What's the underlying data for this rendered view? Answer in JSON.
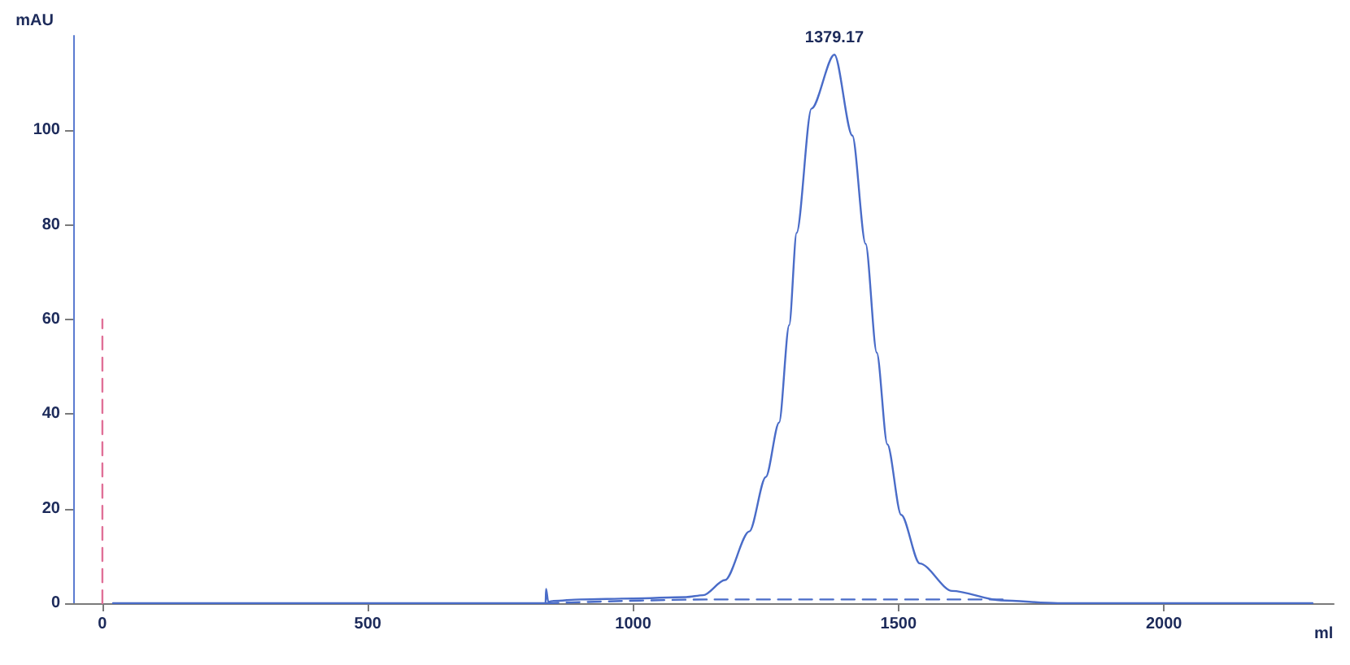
{
  "chart_data": {
    "type": "line",
    "xlabel": "ml",
    "ylabel": "mAU",
    "xlim": [
      -55,
      2320
    ],
    "xticks": [
      0,
      500,
      1000,
      1500,
      2000
    ],
    "ylim": [
      0,
      120
    ],
    "yticks": [
      0,
      20,
      40,
      60,
      80,
      100
    ],
    "grid": false,
    "marker": "none",
    "annotations": [
      {
        "text": "1379.17",
        "x": 1379.17,
        "y": 116
      }
    ],
    "series": [
      {
        "color": "#4a6cc8",
        "line_style": "solid",
        "x": [
          20,
          835,
          836,
          840,
          850,
          900,
          1000,
          1100,
          1132,
          1173,
          1219,
          1250,
          1275,
          1294,
          1308,
          1336,
          1379.17,
          1413,
          1438,
          1459,
          1479,
          1505,
          1540,
          1601,
          1693,
          1800,
          2280
        ],
        "values": [
          0,
          0,
          3,
          0.3,
          0.5,
          0.8,
          1,
          1.3,
          1.7,
          4.9,
          15.2,
          26.7,
          38.2,
          58.8,
          78.3,
          104.6,
          116,
          98.9,
          76,
          53,
          33.6,
          18.7,
          8.4,
          2.6,
          0.6,
          0,
          0
        ]
      },
      {
        "color": "#4a6cc8",
        "line_style": "dashed",
        "x": [
          835,
          1150,
          1700
        ],
        "values": [
          0,
          0.8,
          0.8
        ]
      },
      {
        "color": "#e07098",
        "line_style": "dashed",
        "x": [
          0,
          0
        ],
        "values": [
          0,
          60
        ]
      }
    ]
  }
}
